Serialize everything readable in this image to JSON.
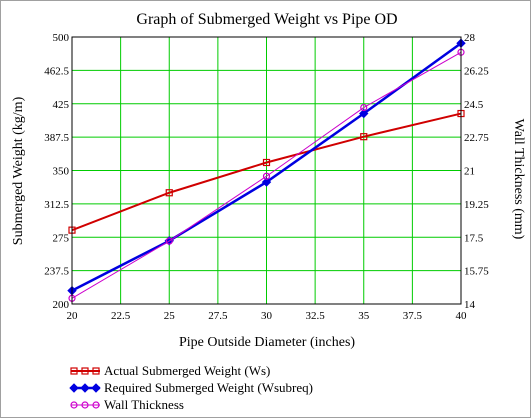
{
  "chart_data": {
    "type": "line",
    "title": "Graph of Submerged Weight vs Pipe OD",
    "xlabel": "Pipe Outside Diameter (inches)",
    "ylabel": "Submerged Weight (kg/m)",
    "y2label": "Wall Thickness (mm)",
    "xlim": [
      20,
      40
    ],
    "ylim": [
      200,
      500
    ],
    "y2lim": [
      14,
      28
    ],
    "x_ticks": [
      "20",
      "22.5",
      "25",
      "27.5",
      "30",
      "32.5",
      "35",
      "37.5",
      "40"
    ],
    "y_ticks": [
      "200",
      "237.5",
      "275",
      "312.5",
      "350",
      "387.5",
      "425",
      "462.5",
      "500"
    ],
    "y2_ticks": [
      "14",
      "15.75",
      "17.5",
      "19.25",
      "21",
      "22.75",
      "24.5",
      "26.25",
      "28"
    ],
    "grid": true,
    "grid_color": "#00cc00",
    "legend_position": "bottom-left",
    "x_values": [
      20,
      25,
      30,
      35,
      40
    ],
    "series": [
      {
        "name": "Actual Submerged Weight (Ws)",
        "axis": "left",
        "color": "#d00000",
        "marker": "square",
        "values": [
          283,
          325,
          359,
          388,
          414
        ]
      },
      {
        "name": "Required Submerged Weight (Wsubreq)",
        "axis": "left",
        "color": "#0000e0",
        "marker": "diamond",
        "values": [
          215,
          271,
          337,
          414,
          493
        ]
      },
      {
        "name": "Wall Thickness",
        "axis": "right",
        "color": "#cc00cc",
        "marker": "circle",
        "values": [
          14.3,
          17.3,
          20.7,
          24.3,
          27.2
        ]
      }
    ]
  }
}
